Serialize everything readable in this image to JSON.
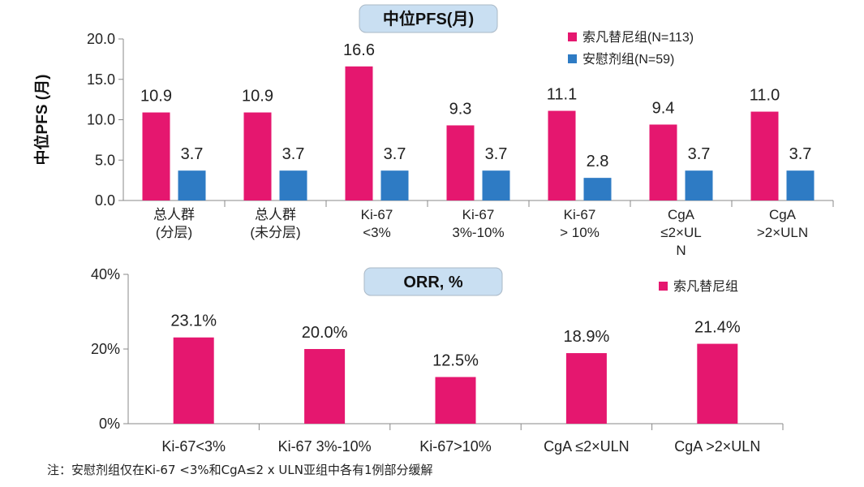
{
  "charts": [
    {
      "id": "pfs",
      "type": "bar",
      "title": "中位PFS(月)",
      "ylabel": "中位PFS (月)",
      "ylim": [
        0,
        20
      ],
      "yticks": [
        "0.0",
        "5.0",
        "10.0",
        "15.0",
        "20.0"
      ],
      "ytick_values": [
        0,
        5,
        10,
        15,
        20
      ],
      "categories": [
        [
          "总人群",
          "(分层)"
        ],
        [
          "总人群",
          "(未分层)"
        ],
        [
          "Ki-67",
          "<3%"
        ],
        [
          "Ki-67",
          "3%-10%"
        ],
        [
          "Ki-67",
          "> 10%"
        ],
        [
          "CgA",
          "≤2×UL",
          "N"
        ],
        [
          "CgA",
          ">2×ULN"
        ]
      ],
      "series": [
        {
          "name": "索凡替尼组(N=113)",
          "color": "#e5176f",
          "values": [
            10.9,
            10.9,
            16.6,
            9.3,
            11.1,
            9.4,
            11.0
          ],
          "labels": [
            "10.9",
            "10.9",
            "16.6",
            "9.3",
            "11.1",
            "9.4",
            "11.0"
          ]
        },
        {
          "name": "安慰剂组(N=59)",
          "color": "#2e7bc4",
          "values": [
            3.7,
            3.7,
            3.7,
            3.7,
            2.8,
            3.7,
            3.7
          ],
          "labels": [
            "3.7",
            "3.7",
            "3.7",
            "3.7",
            "2.8",
            "3.7",
            "3.7"
          ]
        }
      ],
      "legend": "top-right"
    },
    {
      "id": "orr",
      "type": "bar",
      "title": "ORR, %",
      "ylabel": "",
      "ylim": [
        0,
        40
      ],
      "yticks": [
        "0%",
        "20%",
        "40%"
      ],
      "ytick_values": [
        0,
        20,
        40
      ],
      "categories": [
        [
          "Ki-67<3%"
        ],
        [
          "Ki-67 3%-10%"
        ],
        [
          "Ki-67>10%"
        ],
        [
          "CgA ≤2×ULN"
        ],
        [
          "CgA >2×ULN"
        ]
      ],
      "series": [
        {
          "name": "索凡替尼组",
          "color": "#e5176f",
          "values": [
            23.1,
            20.0,
            12.5,
            18.9,
            21.4
          ],
          "labels": [
            "23.1%",
            "20.0%",
            "12.5%",
            "18.9%",
            "21.4%"
          ]
        }
      ],
      "legend": "top-right"
    }
  ],
  "footnote": "注：安慰剂组仅在Ki-67 <3%和CgA≤2 x ULN亚组中各有1例部分缓解",
  "colors": {
    "title_box": "#c9dff2",
    "axis": "#888888"
  }
}
